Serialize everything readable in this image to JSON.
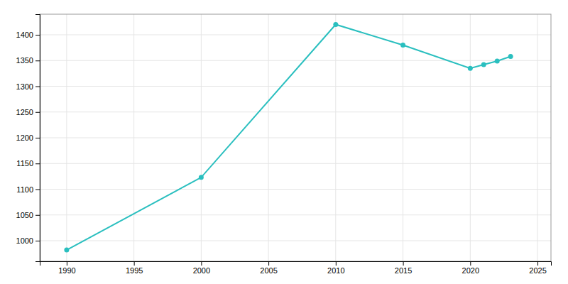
{
  "chart_data": {
    "type": "line",
    "x": [
      1990,
      2000,
      2010,
      2015,
      2020,
      2021,
      2022,
      2023
    ],
    "values": [
      982,
      1123,
      1420,
      1380,
      1335,
      1342,
      1349,
      1358
    ],
    "color": "#2abfbf",
    "marker": "circle",
    "xlim": [
      1988,
      2026
    ],
    "ylim": [
      960,
      1440
    ],
    "xticks": [
      1990,
      1995,
      2000,
      2005,
      2010,
      2015,
      2020,
      2025
    ],
    "yticks": [
      1000,
      1050,
      1100,
      1150,
      1200,
      1250,
      1300,
      1350,
      1400
    ],
    "grid": true
  }
}
